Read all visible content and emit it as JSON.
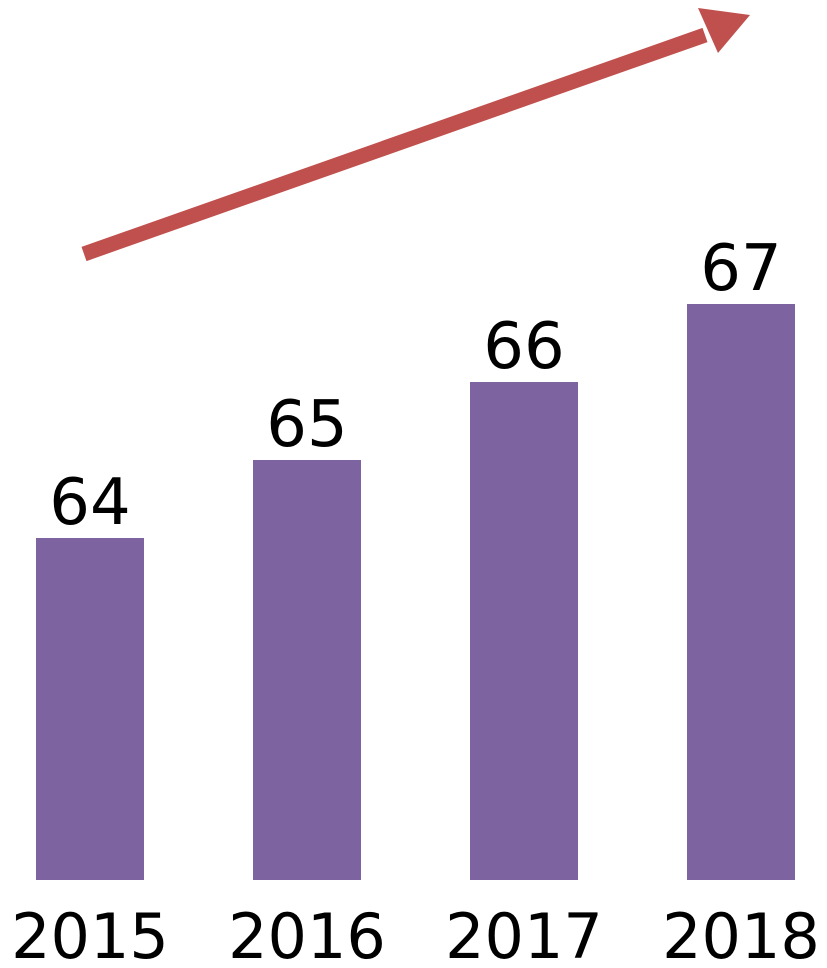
{
  "chart_data": {
    "type": "bar",
    "categories": [
      "2015",
      "2016",
      "2017",
      "2018"
    ],
    "values": [
      64,
      65,
      66,
      67
    ],
    "data_labels": [
      "64",
      "65",
      "66",
      "67"
    ],
    "title": "",
    "xlabel": "",
    "ylabel": "",
    "axes_visible": false,
    "grid": false,
    "legend": "none",
    "bar_color": "#7d63a0",
    "trend_arrow": {
      "direction": "up-right",
      "color": "#c0504d"
    }
  }
}
